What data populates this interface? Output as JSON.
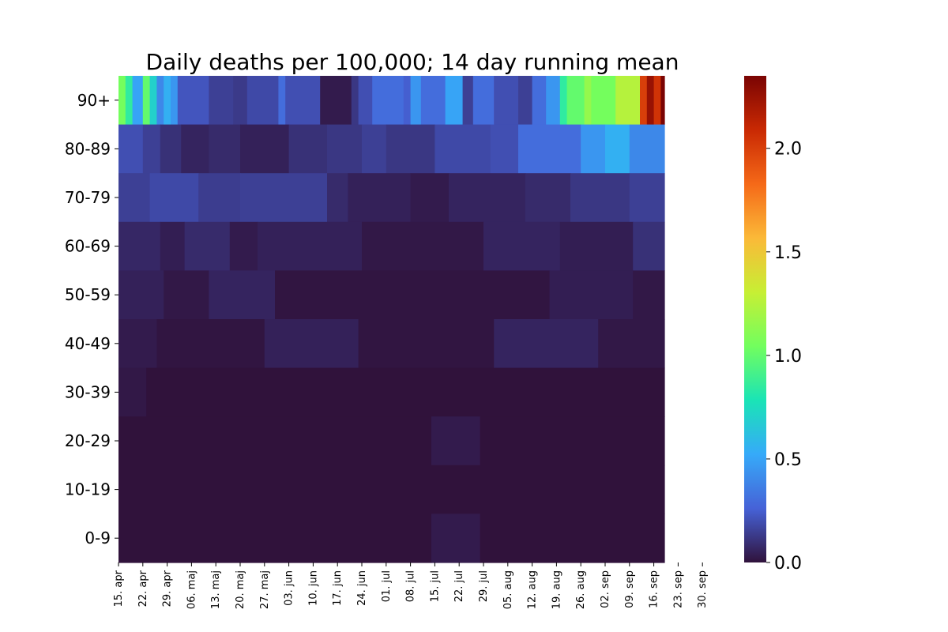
{
  "chart_data": {
    "type": "heatmap",
    "title": "Daily deaths per 100,000; 14 day running mean",
    "rows": [
      "90+",
      "80-89",
      "70-79",
      "60-69",
      "50-59",
      "40-49",
      "30-39",
      "20-29",
      "10-19",
      "0-9"
    ],
    "x_tick_labels": [
      "15. apr",
      "22. apr",
      "29. apr",
      "06. maj",
      "13. maj",
      "20. maj",
      "27. maj",
      "03. jun",
      "10. jun",
      "17. jun",
      "24. jun",
      "01. jul",
      "08. jul",
      "15. jul",
      "22. jul",
      "29. jul",
      "05. aug",
      "12. aug",
      "19. aug",
      "26. aug",
      "02. sep",
      "09. sep",
      "16. sep",
      "23. sep",
      "30. sep"
    ],
    "x_range": [
      "15. apr",
      "23. sep"
    ],
    "colorbar": {
      "min": 0.0,
      "max": 2.35,
      "ticks": [
        "0.0",
        "0.5",
        "1.0",
        "1.5",
        "2.0"
      ],
      "colormap": "turbo",
      "colors": [
        "#30123b",
        "#4662d7",
        "#36aaf9",
        "#1ae4b6",
        "#72fe5e",
        "#c7ef34",
        "#fbb938",
        "#f56918",
        "#c92903",
        "#7a0403"
      ]
    },
    "grid": false,
    "series": [
      {
        "label": "90+",
        "values": [
          {
            "from": "15. apr",
            "to": "17. apr",
            "v": 1.05
          },
          {
            "from": "17. apr",
            "to": "19. apr",
            "v": 0.85
          },
          {
            "from": "19. apr",
            "to": "22. apr",
            "v": 0.5
          },
          {
            "from": "22. apr",
            "to": "24. apr",
            "v": 1.0
          },
          {
            "from": "24. apr",
            "to": "26. apr",
            "v": 0.7
          },
          {
            "from": "26. apr",
            "to": "28. apr",
            "v": 0.4
          },
          {
            "from": "28. apr",
            "to": "30. apr",
            "v": 0.55
          },
          {
            "from": "30. apr",
            "to": "02. maj",
            "v": 0.45
          },
          {
            "from": "02. maj",
            "to": "11. maj",
            "v": 0.22
          },
          {
            "from": "11. maj",
            "to": "18. maj",
            "v": 0.15
          },
          {
            "from": "18. maj",
            "to": "22. maj",
            "v": 0.13
          },
          {
            "from": "22. maj",
            "to": "31. maj",
            "v": 0.18
          },
          {
            "from": "31. maj",
            "to": "02. jun",
            "v": 0.3
          },
          {
            "from": "02. jun",
            "to": "12. jun",
            "v": 0.2
          },
          {
            "from": "12. jun",
            "to": "21. jun",
            "v": 0.03
          },
          {
            "from": "21. jun",
            "to": "23. jun",
            "v": 0.12
          },
          {
            "from": "23. jun",
            "to": "27. jun",
            "v": 0.2
          },
          {
            "from": "27. jun",
            "to": "06. jul",
            "v": 0.3
          },
          {
            "from": "06. jul",
            "to": "08. jul",
            "v": 0.25
          },
          {
            "from": "08. jul",
            "to": "11. jul",
            "v": 0.45
          },
          {
            "from": "11. jul",
            "to": "18. jul",
            "v": 0.3
          },
          {
            "from": "18. jul",
            "to": "23. jul",
            "v": 0.5
          },
          {
            "from": "23. jul",
            "to": "26. jul",
            "v": 0.15
          },
          {
            "from": "26. jul",
            "to": "01. aug",
            "v": 0.3
          },
          {
            "from": "01. aug",
            "to": "08. aug",
            "v": 0.2
          },
          {
            "from": "08. aug",
            "to": "12. aug",
            "v": 0.15
          },
          {
            "from": "12. aug",
            "to": "16. aug",
            "v": 0.3
          },
          {
            "from": "16. aug",
            "to": "20. aug",
            "v": 0.45
          },
          {
            "from": "20. aug",
            "to": "22. aug",
            "v": 0.85
          },
          {
            "from": "22. aug",
            "to": "27. aug",
            "v": 1.0
          },
          {
            "from": "27. aug",
            "to": "29. aug",
            "v": 1.15
          },
          {
            "from": "29. aug",
            "to": "05. sep",
            "v": 1.05
          },
          {
            "from": "05. sep",
            "to": "12. sep",
            "v": 1.25
          },
          {
            "from": "12. sep",
            "to": "14. sep",
            "v": 2.0
          },
          {
            "from": "14. sep",
            "to": "16. sep",
            "v": 2.25
          },
          {
            "from": "16. sep",
            "to": "18. sep",
            "v": 2.05
          },
          {
            "from": "18. sep",
            "to": "20. sep",
            "v": 2.35
          },
          {
            "from": "20. sep",
            "to": "22. sep",
            "v": 2.3
          },
          {
            "from": "22. sep",
            "to": "23. sep",
            "v": 1.75
          }
        ]
      },
      {
        "label": "80-89",
        "values": [
          {
            "from": "15. apr",
            "to": "22. apr",
            "v": 0.2
          },
          {
            "from": "22. apr",
            "to": "27. apr",
            "v": 0.15
          },
          {
            "from": "27. apr",
            "to": "03. maj",
            "v": 0.1
          },
          {
            "from": "03. maj",
            "to": "11. maj",
            "v": 0.06
          },
          {
            "from": "11. maj",
            "to": "20. maj",
            "v": 0.08
          },
          {
            "from": "20. maj",
            "to": "03. jun",
            "v": 0.05
          },
          {
            "from": "03. jun",
            "to": "14. jun",
            "v": 0.1
          },
          {
            "from": "14. jun",
            "to": "24. jun",
            "v": 0.12
          },
          {
            "from": "24. jun",
            "to": "01. jul",
            "v": 0.15
          },
          {
            "from": "01. jul",
            "to": "15. jul",
            "v": 0.12
          },
          {
            "from": "15. jul",
            "to": "31. jul",
            "v": 0.18
          },
          {
            "from": "31. jul",
            "to": "08. aug",
            "v": 0.2
          },
          {
            "from": "08. aug",
            "to": "26. aug",
            "v": 0.3
          },
          {
            "from": "26. aug",
            "to": "02. sep",
            "v": 0.45
          },
          {
            "from": "02. sep",
            "to": "09. sep",
            "v": 0.55
          },
          {
            "from": "09. sep",
            "to": "23. sep",
            "v": 0.4
          }
        ]
      },
      {
        "label": "70-79",
        "values": [
          {
            "from": "15. apr",
            "to": "24. apr",
            "v": 0.15
          },
          {
            "from": "24. apr",
            "to": "08. maj",
            "v": 0.18
          },
          {
            "from": "08. maj",
            "to": "20. maj",
            "v": 0.14
          },
          {
            "from": "20. maj",
            "to": "14. jun",
            "v": 0.15
          },
          {
            "from": "14. jun",
            "to": "20. jun",
            "v": 0.08
          },
          {
            "from": "20. jun",
            "to": "08. jul",
            "v": 0.05
          },
          {
            "from": "08. jul",
            "to": "19. jul",
            "v": 0.03
          },
          {
            "from": "19. jul",
            "to": "10. aug",
            "v": 0.06
          },
          {
            "from": "10. aug",
            "to": "23. aug",
            "v": 0.08
          },
          {
            "from": "23. aug",
            "to": "09. sep",
            "v": 0.12
          },
          {
            "from": "09. sep",
            "to": "23. sep",
            "v": 0.15
          }
        ]
      },
      {
        "label": "60-69",
        "values": [
          {
            "from": "15. apr",
            "to": "27. apr",
            "v": 0.07
          },
          {
            "from": "27. apr",
            "to": "04. maj",
            "v": 0.04
          },
          {
            "from": "04. maj",
            "to": "17. maj",
            "v": 0.08
          },
          {
            "from": "17. maj",
            "to": "25. maj",
            "v": 0.03
          },
          {
            "from": "25. maj",
            "to": "24. jun",
            "v": 0.05
          },
          {
            "from": "24. jun",
            "to": "29. jul",
            "v": 0.02
          },
          {
            "from": "29. jul",
            "to": "20. aug",
            "v": 0.06
          },
          {
            "from": "20. aug",
            "to": "10. sep",
            "v": 0.04
          },
          {
            "from": "10. sep",
            "to": "23. sep",
            "v": 0.1
          }
        ]
      },
      {
        "label": "50-59",
        "values": [
          {
            "from": "15. apr",
            "to": "28. apr",
            "v": 0.05
          },
          {
            "from": "28. apr",
            "to": "11. maj",
            "v": 0.02
          },
          {
            "from": "11. maj",
            "to": "30. maj",
            "v": 0.06
          },
          {
            "from": "30. maj",
            "to": "17. aug",
            "v": 0.01
          },
          {
            "from": "17. aug",
            "to": "10. sep",
            "v": 0.04
          },
          {
            "from": "10. sep",
            "to": "23. sep",
            "v": 0.02
          }
        ]
      },
      {
        "label": "40-49",
        "values": [
          {
            "from": "15. apr",
            "to": "26. apr",
            "v": 0.03
          },
          {
            "from": "26. apr",
            "to": "27. maj",
            "v": 0.01
          },
          {
            "from": "27. maj",
            "to": "23. jun",
            "v": 0.05
          },
          {
            "from": "23. jun",
            "to": "01. aug",
            "v": 0.01
          },
          {
            "from": "01. aug",
            "to": "31. aug",
            "v": 0.06
          },
          {
            "from": "31. aug",
            "to": "23. sep",
            "v": 0.02
          }
        ]
      },
      {
        "label": "30-39",
        "values": [
          {
            "from": "15. apr",
            "to": "23. apr",
            "v": 0.02
          },
          {
            "from": "23. apr",
            "to": "23. sep",
            "v": 0.0
          }
        ]
      },
      {
        "label": "20-29",
        "values": [
          {
            "from": "15. apr",
            "to": "14. jul",
            "v": 0.0
          },
          {
            "from": "14. jul",
            "to": "28. jul",
            "v": 0.03
          },
          {
            "from": "28. jul",
            "to": "23. sep",
            "v": 0.0
          }
        ]
      },
      {
        "label": "10-19",
        "values": [
          {
            "from": "15. apr",
            "to": "23. sep",
            "v": 0.0
          }
        ]
      },
      {
        "label": "0-9",
        "values": [
          {
            "from": "15. apr",
            "to": "14. jul",
            "v": 0.0
          },
          {
            "from": "14. jul",
            "to": "28. jul",
            "v": 0.03
          },
          {
            "from": "28. jul",
            "to": "23. sep",
            "v": 0.0
          }
        ]
      }
    ]
  }
}
